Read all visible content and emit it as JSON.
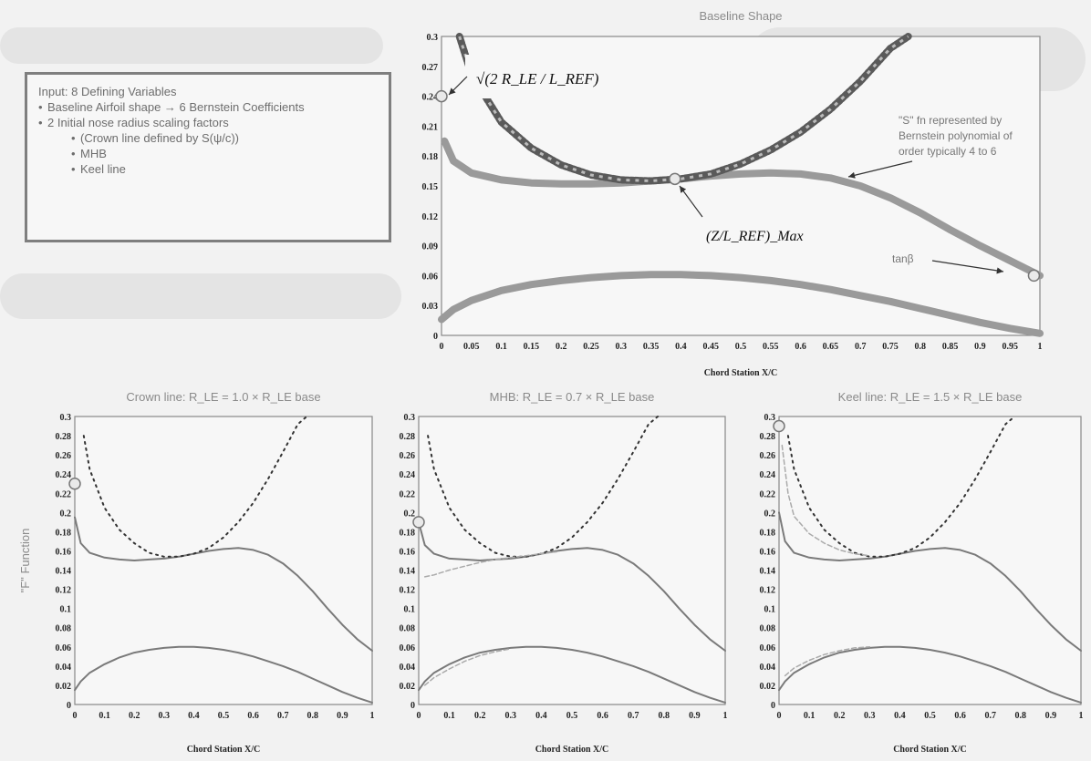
{
  "infobox": {
    "title": "Input: 8 Defining Variables",
    "items": [
      {
        "text": "Baseline Airfoil shape → 6 Bernstein Coefficients",
        "sub": []
      },
      {
        "text": "2 Initial nose radius scaling factors",
        "sub": [
          "(Crown line defined by S(ψ/c))",
          "MHB",
          "Keel line"
        ]
      }
    ]
  },
  "main_chart": {
    "title": "Baseline Shape",
    "xlabel": "Chord Station X/C",
    "annotations": {
      "nose_formula": "√(2 R_LE / L_REF)",
      "s_fn_line1": "\"S\" fn represented by",
      "s_fn_line2": "Bernstein polynomial of",
      "s_fn_line3": "order typically 4 to 6",
      "max_label": "(Z/L_REF)_Max",
      "tan_label": "tanβ"
    }
  },
  "chart_data": [
    {
      "type": "line",
      "title": "Baseline Shape",
      "xlabel": "Chord Station X/C",
      "ylabel": "",
      "xlim": [
        0,
        1
      ],
      "ylim": [
        0,
        0.3
      ],
      "xticks": [
        "0",
        "0.05",
        "0.1",
        "0.15",
        "0.2",
        "0.25",
        "0.3",
        "0.35",
        "0.4",
        "0.45",
        "0.5",
        "0.55",
        "0.6",
        "0.65",
        "0.7",
        "0.75",
        "0.8",
        "0.85",
        "0.9",
        "0.95",
        "1"
      ],
      "yticks": [
        "0",
        "0.03",
        "0.06",
        "0.09",
        "0.12",
        "0.15",
        "0.18",
        "0.21",
        "0.24",
        "0.27",
        "0.3"
      ],
      "series": [
        {
          "name": "",
          "color": "#8c8c8c",
          "style": "thick",
          "x": [
            0.005,
            0.02,
            0.05,
            0.1,
            0.15,
            0.2,
            0.25,
            0.3,
            0.35,
            0.4,
            0.45,
            0.5,
            0.55,
            0.6,
            0.65,
            0.7,
            0.75,
            0.8,
            0.85,
            0.9,
            0.95,
            1.0
          ],
          "y": [
            0.195,
            0.175,
            0.163,
            0.156,
            0.153,
            0.152,
            0.152,
            0.153,
            0.155,
            0.157,
            0.16,
            0.162,
            0.163,
            0.162,
            0.158,
            0.15,
            0.138,
            0.123,
            0.106,
            0.09,
            0.075,
            0.06
          ]
        },
        {
          "name": "",
          "color": "#555555",
          "style": "hatched",
          "x": [
            0.03,
            0.05,
            0.1,
            0.15,
            0.2,
            0.25,
            0.3,
            0.35,
            0.4,
            0.45,
            0.5,
            0.55,
            0.6,
            0.65,
            0.7,
            0.75,
            0.78
          ],
          "y": [
            0.3,
            0.262,
            0.214,
            0.188,
            0.171,
            0.161,
            0.156,
            0.155,
            0.157,
            0.162,
            0.172,
            0.186,
            0.204,
            0.227,
            0.255,
            0.288,
            0.3
          ]
        },
        {
          "name": "",
          "color": "#8c8c8c",
          "style": "thick",
          "x": [
            0,
            0.02,
            0.05,
            0.1,
            0.15,
            0.2,
            0.25,
            0.3,
            0.35,
            0.4,
            0.45,
            0.5,
            0.55,
            0.6,
            0.65,
            0.7,
            0.75,
            0.8,
            0.85,
            0.9,
            0.95,
            1.0
          ],
          "y": [
            0.016,
            0.026,
            0.035,
            0.045,
            0.051,
            0.055,
            0.058,
            0.06,
            0.061,
            0.061,
            0.06,
            0.058,
            0.055,
            0.051,
            0.046,
            0.04,
            0.034,
            0.027,
            0.02,
            0.013,
            0.007,
            0.002
          ]
        }
      ],
      "markers": [
        {
          "x": 0,
          "y": 0.24
        },
        {
          "x": 0.39,
          "y": 0.157
        },
        {
          "x": 0.99,
          "y": 0.06
        }
      ]
    },
    {
      "type": "line",
      "title": "Crown line: R_LE = 1.0 × R_LE base",
      "xlabel": "Chord Station X/C",
      "ylabel": "\"F\" Function",
      "xlim": [
        0,
        1
      ],
      "ylim": [
        0,
        0.3
      ],
      "xticks": [
        "0",
        "0.1",
        "0.2",
        "0.3",
        "0.4",
        "0.5",
        "0.6",
        "0.7",
        "0.8",
        "0.9",
        "1"
      ],
      "yticks": [
        "0",
        "0.02",
        "0.04",
        "0.06",
        "0.08",
        "0.1",
        "0.12",
        "0.14",
        "0.16",
        "0.18",
        "0.2",
        "0.22",
        "0.24",
        "0.26",
        "0.28",
        "0.3"
      ],
      "series": [
        {
          "name": "",
          "color": "#7a7a7a",
          "style": "solid",
          "x": [
            0,
            0.02,
            0.05,
            0.1,
            0.15,
            0.2,
            0.25,
            0.3,
            0.35,
            0.4,
            0.45,
            0.5,
            0.55,
            0.6,
            0.65,
            0.7,
            0.75,
            0.8,
            0.85,
            0.9,
            0.95,
            1.0
          ],
          "y": [
            0.195,
            0.168,
            0.158,
            0.153,
            0.151,
            0.15,
            0.151,
            0.152,
            0.154,
            0.157,
            0.16,
            0.162,
            0.163,
            0.161,
            0.156,
            0.147,
            0.134,
            0.118,
            0.1,
            0.083,
            0.068,
            0.056
          ]
        },
        {
          "name": "",
          "color": "#333333",
          "style": "dotted",
          "x": [
            0.03,
            0.05,
            0.1,
            0.15,
            0.2,
            0.25,
            0.3,
            0.35,
            0.4,
            0.45,
            0.5,
            0.55,
            0.6,
            0.65,
            0.7,
            0.75,
            0.78
          ],
          "y": [
            0.28,
            0.245,
            0.205,
            0.182,
            0.168,
            0.158,
            0.154,
            0.154,
            0.157,
            0.163,
            0.174,
            0.19,
            0.21,
            0.235,
            0.263,
            0.292,
            0.3
          ]
        },
        {
          "name": "",
          "color": "#7a7a7a",
          "style": "solid",
          "x": [
            0,
            0.02,
            0.05,
            0.1,
            0.15,
            0.2,
            0.25,
            0.3,
            0.35,
            0.4,
            0.45,
            0.5,
            0.55,
            0.6,
            0.65,
            0.7,
            0.75,
            0.8,
            0.85,
            0.9,
            0.95,
            1.0
          ],
          "y": [
            0.015,
            0.024,
            0.033,
            0.042,
            0.049,
            0.054,
            0.057,
            0.059,
            0.06,
            0.06,
            0.059,
            0.057,
            0.054,
            0.05,
            0.045,
            0.04,
            0.034,
            0.027,
            0.02,
            0.013,
            0.007,
            0.002
          ]
        }
      ],
      "markers": [
        {
          "x": 0,
          "y": 0.23
        }
      ]
    },
    {
      "type": "line",
      "title": "MHB: R_LE = 0.7 × R_LE base",
      "xlabel": "Chord Station X/C",
      "ylabel": "",
      "xlim": [
        0,
        1
      ],
      "ylim": [
        0,
        0.3
      ],
      "xticks": [
        "0",
        "0.1",
        "0.2",
        "0.3",
        "0.4",
        "0.5",
        "0.6",
        "0.7",
        "0.8",
        "0.9",
        "1"
      ],
      "yticks": [
        "0",
        "0.02",
        "0.04",
        "0.06",
        "0.08",
        "0.1",
        "0.12",
        "0.14",
        "0.16",
        "0.18",
        "0.2",
        "0.22",
        "0.24",
        "0.26",
        "0.28",
        "0.3"
      ],
      "series": [
        {
          "name": "",
          "color": "#7a7a7a",
          "style": "solid",
          "x": [
            0,
            0.02,
            0.05,
            0.1,
            0.15,
            0.2,
            0.25,
            0.3,
            0.35,
            0.4,
            0.45,
            0.5,
            0.55,
            0.6,
            0.65,
            0.7,
            0.75,
            0.8,
            0.85,
            0.9,
            0.95,
            1.0
          ],
          "y": [
            0.19,
            0.166,
            0.157,
            0.152,
            0.151,
            0.15,
            0.151,
            0.152,
            0.154,
            0.157,
            0.16,
            0.162,
            0.163,
            0.161,
            0.156,
            0.147,
            0.134,
            0.118,
            0.1,
            0.083,
            0.068,
            0.056
          ]
        },
        {
          "name": "",
          "color": "#333333",
          "style": "dotted",
          "x": [
            0.03,
            0.05,
            0.1,
            0.15,
            0.2,
            0.25,
            0.3,
            0.35,
            0.4,
            0.45,
            0.5,
            0.55,
            0.6,
            0.65,
            0.7,
            0.75,
            0.78
          ],
          "y": [
            0.28,
            0.245,
            0.205,
            0.182,
            0.168,
            0.158,
            0.154,
            0.154,
            0.157,
            0.163,
            0.174,
            0.19,
            0.21,
            0.235,
            0.263,
            0.292,
            0.3
          ]
        },
        {
          "name": "",
          "color": "#aaaaaa",
          "style": "dashed",
          "x": [
            0.02,
            0.05,
            0.1,
            0.15,
            0.2,
            0.25,
            0.3,
            0.35,
            0.4,
            0.45
          ],
          "y": [
            0.133,
            0.135,
            0.14,
            0.144,
            0.148,
            0.151,
            0.153,
            0.155,
            0.157,
            0.159
          ]
        },
        {
          "name": "",
          "color": "#7a7a7a",
          "style": "solid",
          "x": [
            0,
            0.02,
            0.05,
            0.1,
            0.15,
            0.2,
            0.25,
            0.3,
            0.35,
            0.4,
            0.45,
            0.5,
            0.55,
            0.6,
            0.65,
            0.7,
            0.75,
            0.8,
            0.85,
            0.9,
            0.95,
            1.0
          ],
          "y": [
            0.015,
            0.024,
            0.033,
            0.042,
            0.049,
            0.054,
            0.057,
            0.059,
            0.06,
            0.06,
            0.059,
            0.057,
            0.054,
            0.05,
            0.045,
            0.04,
            0.034,
            0.027,
            0.02,
            0.013,
            0.007,
            0.002
          ]
        },
        {
          "name": "",
          "color": "#aaaaaa",
          "style": "dashed",
          "x": [
            0.02,
            0.05,
            0.1,
            0.15,
            0.2,
            0.25,
            0.3
          ],
          "y": [
            0.02,
            0.028,
            0.037,
            0.045,
            0.051,
            0.055,
            0.058
          ]
        }
      ],
      "markers": [
        {
          "x": 0,
          "y": 0.19
        }
      ]
    },
    {
      "type": "line",
      "title": "Keel line: R_LE = 1.5 × R_LE base",
      "xlabel": "Chord Station X/C",
      "ylabel": "",
      "xlim": [
        0,
        1
      ],
      "ylim": [
        0,
        0.3
      ],
      "xticks": [
        "0",
        "0.1",
        "0.2",
        "0.3",
        "0.4",
        "0.5",
        "0.6",
        "0.7",
        "0.8",
        "0.9",
        "1"
      ],
      "yticks": [
        "0",
        "0.02",
        "0.04",
        "0.06",
        "0.08",
        "0.1",
        "0.12",
        "0.14",
        "0.16",
        "0.18",
        "0.2",
        "0.22",
        "0.24",
        "0.26",
        "0.28",
        "0.3"
      ],
      "series": [
        {
          "name": "",
          "color": "#7a7a7a",
          "style": "solid",
          "x": [
            0,
            0.02,
            0.05,
            0.1,
            0.15,
            0.2,
            0.25,
            0.3,
            0.35,
            0.4,
            0.45,
            0.5,
            0.55,
            0.6,
            0.65,
            0.7,
            0.75,
            0.8,
            0.85,
            0.9,
            0.95,
            1.0
          ],
          "y": [
            0.2,
            0.17,
            0.158,
            0.153,
            0.151,
            0.15,
            0.151,
            0.152,
            0.154,
            0.157,
            0.16,
            0.162,
            0.163,
            0.161,
            0.156,
            0.147,
            0.134,
            0.118,
            0.1,
            0.083,
            0.068,
            0.056
          ]
        },
        {
          "name": "",
          "color": "#333333",
          "style": "dotted",
          "x": [
            0.03,
            0.05,
            0.1,
            0.15,
            0.2,
            0.25,
            0.3,
            0.35,
            0.4,
            0.45,
            0.5,
            0.55,
            0.6,
            0.65,
            0.7,
            0.75,
            0.78
          ],
          "y": [
            0.28,
            0.245,
            0.205,
            0.182,
            0.168,
            0.158,
            0.154,
            0.154,
            0.157,
            0.163,
            0.174,
            0.19,
            0.21,
            0.235,
            0.263,
            0.292,
            0.3
          ]
        },
        {
          "name": "",
          "color": "#aaaaaa",
          "style": "dashed",
          "x": [
            0.01,
            0.03,
            0.05,
            0.1,
            0.15,
            0.2,
            0.25,
            0.3
          ],
          "y": [
            0.27,
            0.22,
            0.196,
            0.178,
            0.168,
            0.161,
            0.157,
            0.155
          ]
        },
        {
          "name": "",
          "color": "#7a7a7a",
          "style": "solid",
          "x": [
            0,
            0.02,
            0.05,
            0.1,
            0.15,
            0.2,
            0.25,
            0.3,
            0.35,
            0.4,
            0.45,
            0.5,
            0.55,
            0.6,
            0.65,
            0.7,
            0.75,
            0.8,
            0.85,
            0.9,
            0.95,
            1.0
          ],
          "y": [
            0.015,
            0.024,
            0.033,
            0.042,
            0.049,
            0.054,
            0.057,
            0.059,
            0.06,
            0.06,
            0.059,
            0.057,
            0.054,
            0.05,
            0.045,
            0.04,
            0.034,
            0.027,
            0.02,
            0.013,
            0.007,
            0.002
          ]
        },
        {
          "name": "",
          "color": "#aaaaaa",
          "style": "dashed",
          "x": [
            0.02,
            0.05,
            0.1,
            0.15,
            0.2,
            0.25,
            0.3
          ],
          "y": [
            0.03,
            0.038,
            0.046,
            0.052,
            0.056,
            0.059,
            0.06
          ]
        }
      ],
      "markers": [
        {
          "x": 0,
          "y": 0.29
        }
      ]
    }
  ]
}
